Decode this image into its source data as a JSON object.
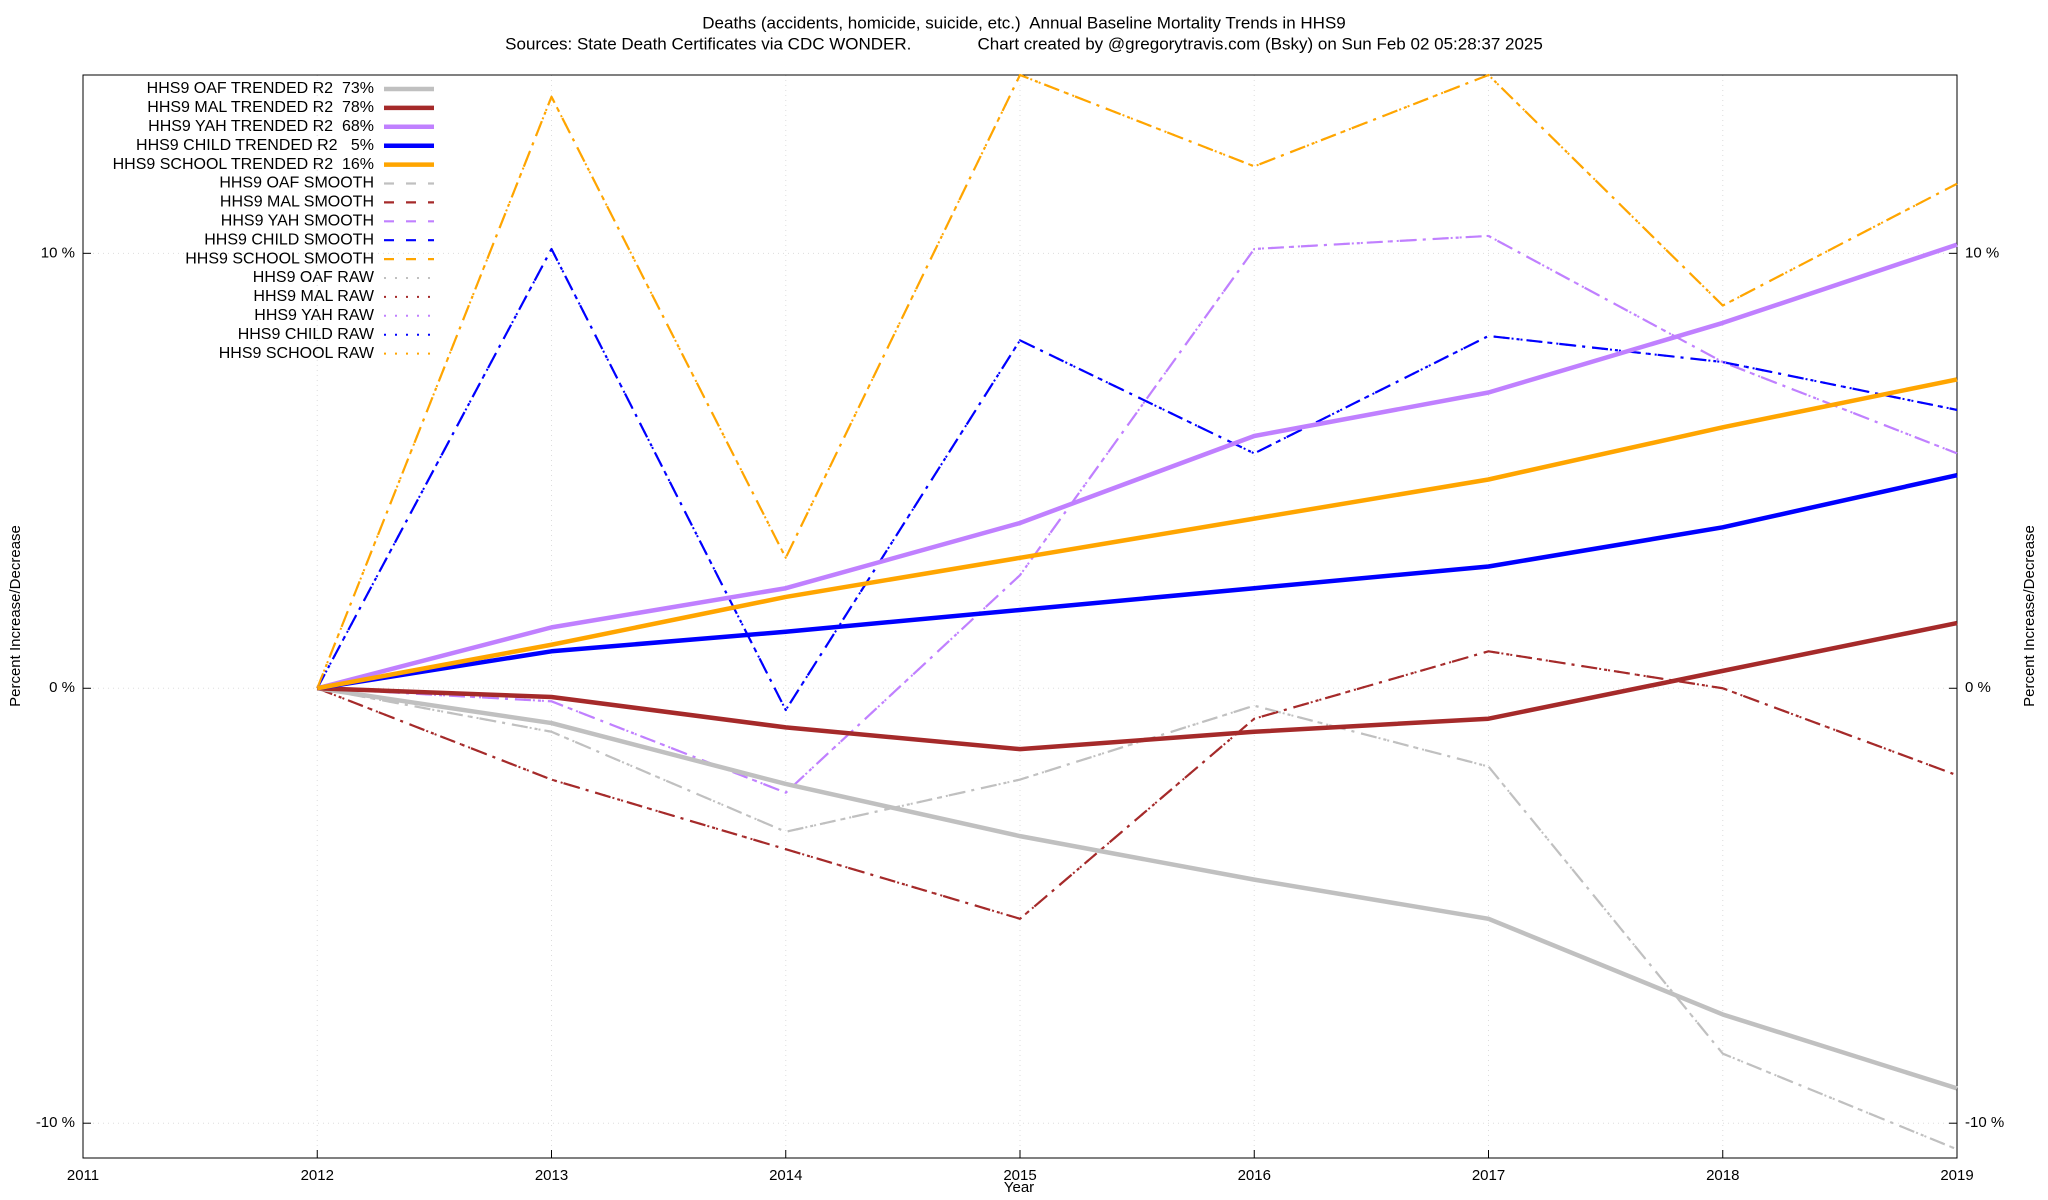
{
  "chart_data": {
    "type": "line",
    "title": "Deaths (accidents, homicide, suicide, etc.)  Annual Baseline Mortality Trends in HHS9",
    "subtitle": "Sources: State Death Certificates via CDC WONDER.              Chart created by @gregorytravis.com (Bsky) on Sun Feb 02 05:28:37 2025",
    "x_label": "Year",
    "y_label": "Percent Increase/Decrease",
    "y2_label": "Percent Increase/Decrease",
    "x": [
      2012,
      2013,
      2014,
      2015,
      2016,
      2017,
      2018,
      2019
    ],
    "xlim": [
      2011,
      2019
    ],
    "xticks": [
      2011,
      2012,
      2013,
      2014,
      2015,
      2016,
      2017,
      2018,
      2019
    ],
    "ylim": [
      -10.8,
      14.1
    ],
    "yticks": [
      {
        "value": -10,
        "label": "-10 %"
      },
      {
        "value": 0,
        "label": "0 %"
      },
      {
        "value": 10,
        "label": "10 %"
      }
    ],
    "grid": true,
    "legend": "top-left",
    "series": [
      {
        "name": "HHS9 OAF TRENDED R2  73%",
        "color": "#c0c0c0",
        "style": "solid",
        "values": [
          0,
          -0.8,
          -2.2,
          -3.4,
          -4.4,
          -5.3,
          -7.5,
          -9.2
        ]
      },
      {
        "name": "HHS9 MAL TRENDED R2  78%",
        "color": "#a52a2a",
        "style": "solid",
        "values": [
          0,
          -0.2,
          -0.9,
          -1.4,
          -1.0,
          -0.7,
          0.4,
          1.5
        ]
      },
      {
        "name": "HHS9 YAH TRENDED R2  68%",
        "color": "#c080ff",
        "style": "solid",
        "values": [
          0,
          1.4,
          2.3,
          3.8,
          5.8,
          6.8,
          8.4,
          10.2
        ]
      },
      {
        "name": "HHS9 CHILD TRENDED R2   5%",
        "color": "#0000ff",
        "style": "solid",
        "values": [
          0,
          0.85,
          1.3,
          1.8,
          2.3,
          2.8,
          3.7,
          4.9
        ]
      },
      {
        "name": "HHS9 SCHOOL TRENDED R2  16%",
        "color": "#ffa500",
        "style": "solid",
        "values": [
          0,
          1.0,
          2.1,
          3.0,
          3.9,
          4.8,
          6.0,
          7.1
        ]
      },
      {
        "name": "HHS9 OAF SMOOTH",
        "color": "#c0c0c0",
        "style": "dashdot",
        "values": [
          0,
          -1.0,
          -3.3,
          -2.1,
          -0.4,
          -1.8,
          -8.4,
          -10.6
        ]
      },
      {
        "name": "HHS9 MAL SMOOTH",
        "color": "#a52a2a",
        "style": "dashdot",
        "values": [
          0,
          -2.1,
          -3.7,
          -5.3,
          -0.7,
          0.85,
          0,
          -2.0
        ]
      },
      {
        "name": "HHS9 YAH SMOOTH",
        "color": "#c080ff",
        "style": "dashdot",
        "values": [
          0,
          -0.3,
          -2.4,
          2.6,
          10.1,
          10.4,
          7.5,
          5.4
        ]
      },
      {
        "name": "HHS9 CHILD SMOOTH",
        "color": "#0000ff",
        "style": "dashdot",
        "values": [
          0,
          10.1,
          -0.5,
          8.0,
          5.4,
          8.1,
          7.5,
          6.4
        ]
      },
      {
        "name": "HHS9 SCHOOL SMOOTH",
        "color": "#ffa500",
        "style": "dashdot",
        "values": [
          0,
          13.6,
          3.0,
          14.1,
          12.0,
          14.1,
          8.8,
          11.6
        ]
      },
      {
        "name": "HHS9 OAF RAW",
        "color": "#c0c0c0",
        "style": "dotted",
        "values": [
          0,
          -1.0,
          -3.3,
          -2.1,
          -0.4,
          -1.8,
          -8.4,
          -10.6
        ]
      },
      {
        "name": "HHS9 MAL RAW",
        "color": "#a52a2a",
        "style": "dotted",
        "values": [
          0,
          -2.1,
          -3.7,
          -5.3,
          -0.7,
          0.85,
          0,
          -2.0
        ]
      },
      {
        "name": "HHS9 YAH RAW",
        "color": "#c080ff",
        "style": "dotted",
        "values": [
          0,
          -0.3,
          -2.4,
          2.6,
          10.1,
          10.4,
          7.5,
          5.4
        ]
      },
      {
        "name": "HHS9 CHILD RAW",
        "color": "#0000ff",
        "style": "dotted",
        "values": [
          0,
          10.1,
          -0.5,
          8.0,
          5.4,
          8.1,
          7.5,
          6.4
        ]
      },
      {
        "name": "HHS9 SCHOOL RAW",
        "color": "#ffa500",
        "style": "dotted",
        "values": [
          0,
          13.6,
          3.0,
          14.1,
          12.0,
          14.1,
          8.8,
          11.6
        ]
      }
    ]
  }
}
